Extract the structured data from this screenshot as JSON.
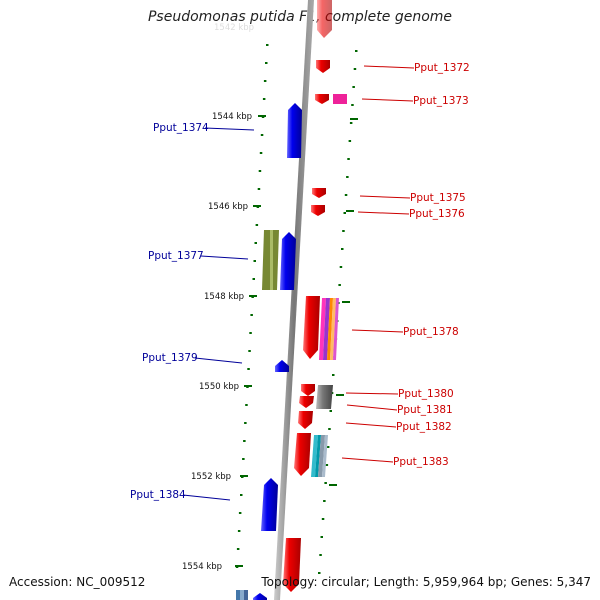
{
  "title": "Pseudomonas putida F1, complete genome",
  "accession": "Accession: NC_009512",
  "summary": "Topology: circular; Length: 5,959,964 bp; Genes: 5,347",
  "colors": {
    "forward": "#ee1111",
    "reverse": "#1111dd",
    "backbone": "#888888",
    "tick": "#006600",
    "label_forward": "#cc0000",
    "label_reverse": "#000099"
  },
  "scale_labels": [
    "1544 kbp",
    "1546 kbp",
    "1548 kbp",
    "1550 kbp",
    "1552 kbp",
    "1554 kbp"
  ],
  "gene_labels_forward": [
    "Pput_1372",
    "Pput_1373",
    "Pput_1375",
    "Pput_1376",
    "Pput_1378",
    "Pput_1380",
    "Pput_1381",
    "Pput_1382",
    "Pput_1383"
  ],
  "gene_labels_reverse": [
    "Pput_1374",
    "Pput_1377",
    "Pput_1379",
    "Pput_1384"
  ]
}
